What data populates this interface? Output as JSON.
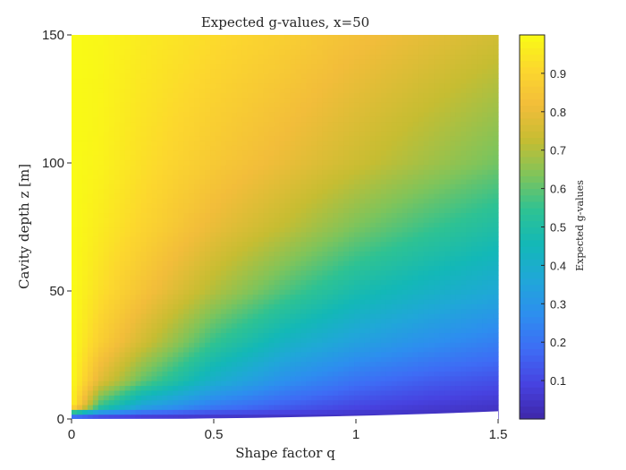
{
  "chart_data": {
    "type": "heatmap",
    "title": "Expected g-values, x=50",
    "xlabel": "Shape factor q",
    "ylabel": "Cavity depth z [m]",
    "xlim": [
      0,
      1.5
    ],
    "ylim": [
      0,
      150
    ],
    "x_ticks": [
      0,
      0.5,
      1,
      1.5
    ],
    "x_tick_labels": [
      "0",
      "0.5",
      "1",
      "1.5"
    ],
    "y_ticks": [
      0,
      50,
      100,
      150
    ],
    "y_tick_labels": [
      "0",
      "50",
      "100",
      "150"
    ],
    "colorbar": {
      "label": "Expected g-values",
      "range": [
        0,
        1
      ],
      "ticks": [
        0.1,
        0.2,
        0.3,
        0.4,
        0.5,
        0.6,
        0.7,
        0.8,
        0.9
      ],
      "tick_labels": [
        "0.1",
        "0.2",
        "0.3",
        "0.4",
        "0.5",
        "0.6",
        "0.7",
        "0.8",
        "0.9"
      ],
      "colormap": "parula",
      "colors": [
        "#3e26a8",
        "#4742e0",
        "#3e6cf5",
        "#2d8eef",
        "#20a7d8",
        "#13b8b7",
        "#2ec293",
        "#80c45a",
        "#c6bd32",
        "#f2bd3a",
        "#fcd72e",
        "#f9fb15"
      ]
    },
    "surface": {
      "description_fields": "g value vs depth z (rows) and q (columns)",
      "q": [
        0,
        0.1,
        0.25,
        0.5,
        0.75,
        1.0,
        1.25,
        1.5
      ],
      "z": [
        0,
        5,
        15,
        30,
        50,
        75,
        100,
        150
      ],
      "g": [
        [
          0.02,
          0.02,
          0.02,
          0.02,
          0.02,
          0.02,
          0.02,
          0.02
        ],
        [
          0.98,
          0.55,
          0.35,
          0.22,
          0.15,
          0.1,
          0.07,
          0.05
        ],
        [
          1.0,
          0.78,
          0.6,
          0.4,
          0.28,
          0.2,
          0.15,
          0.12
        ],
        [
          1.0,
          0.88,
          0.75,
          0.55,
          0.42,
          0.34,
          0.28,
          0.23
        ],
        [
          1.0,
          0.93,
          0.84,
          0.7,
          0.58,
          0.48,
          0.42,
          0.37
        ],
        [
          1.0,
          0.96,
          0.9,
          0.8,
          0.72,
          0.63,
          0.56,
          0.5
        ],
        [
          1.0,
          0.98,
          0.93,
          0.86,
          0.8,
          0.74,
          0.68,
          0.62
        ],
        [
          1.0,
          0.99,
          0.96,
          0.92,
          0.88,
          0.83,
          0.79,
          0.75
        ]
      ],
      "no_data_boundary_z_at_q_max": 3
    }
  }
}
